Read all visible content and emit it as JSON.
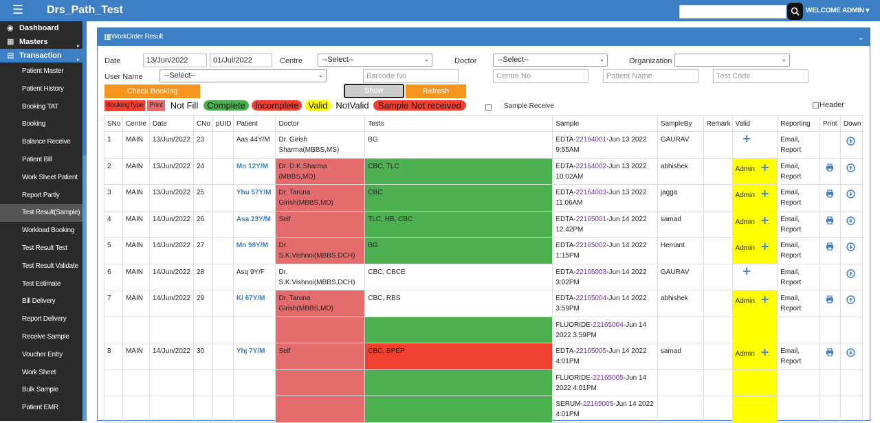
{
  "app": {
    "title": "Drs_Path_Test",
    "welcome": "WELCOME ADMIN ▾"
  },
  "sidebar": {
    "sections": [
      {
        "label": "Dashboard",
        "icon": "dashboard-icon"
      },
      {
        "label": "Masters",
        "icon": "masters-icon"
      },
      {
        "label": "Transaction",
        "icon": "transaction-icon"
      }
    ],
    "items": [
      "Patient Master",
      "Patient History",
      "Booking TAT",
      "Booking",
      "Balance Receive",
      "Patient Bill",
      "Work Sheet Patient",
      "Report Partly",
      "Test Result(Sample)",
      "Workload Booking",
      "Test Result Test",
      "Test Result Validate",
      "Test Estimate",
      "Bill Delivery",
      "Report Delivery",
      "Receive Sample",
      "Voucher Entry",
      "Work Sheet",
      "Bulk Sample",
      "Patient EMR"
    ]
  },
  "panel": {
    "title": "WorkOrder Result"
  },
  "filters": {
    "date_label": "Date",
    "date_from": "13/Jun/2022",
    "date_to": "01/Jul/2022",
    "centre_label": "Centre",
    "centre_value": "--Select--",
    "doctor_label": "Doctor",
    "doctor_value": "--Select--",
    "org_label": "Organization",
    "org_value": "",
    "user_label": "User Name",
    "user_value": "--Select--",
    "barcode_ph": "Barcode No",
    "centre_no_ph": "Centre No",
    "patient_name_ph": "Patient Name",
    "test_code_ph": "Test Code"
  },
  "buttons": {
    "check_booking": "Check Booking",
    "show": "Show",
    "refresh": "Refresh"
  },
  "legend": {
    "booking_type": "BookingType",
    "print": "Print",
    "not_fill": "Not Fill",
    "complete": "Complete",
    "incomplete": "Incomplete",
    "valid": "Valid",
    "not_valid": "NotValid",
    "sample_not_received": "Sample Not received",
    "sample_receive": "Sample Receive",
    "header": "Header"
  },
  "table": {
    "headers": [
      "SNo",
      "Centre",
      "Date",
      "CNo",
      "pUID",
      "Patient",
      "Doctor",
      "Tests",
      "Sample",
      "SampleBy",
      "Remark",
      "Valid",
      "Reporting",
      "Print",
      "Down"
    ],
    "rows": [
      {
        "sno": "1",
        "centre": "MAIN",
        "date": "13/Jun/2022",
        "cno": "23",
        "puid": "",
        "patient": "Aas 44Y/M",
        "doctor": "Dr. Girish Sharma(MBBS,MS)",
        "tests": "BG",
        "sample_prefix": "EDTA-",
        "sample_id": "22164001",
        "sample_suffix": "-Jun 13 2022 9:55AM",
        "sampleby": "GAURAV",
        "valid": "",
        "reporting": "Email, Report",
        "print": false,
        "down": "up"
      },
      {
        "sno": "2",
        "centre": "MAIN",
        "date": "13/Jun/2022",
        "cno": "24",
        "puid": "",
        "patient": "Mn 12Y/M",
        "doctor": "Dr. D.K.Sharma (MBBS,MD)",
        "tests": "CBC, TLC",
        "sample_prefix": "EDTA-",
        "sample_id": "22164002",
        "sample_suffix": "-Jun 13 2022 10:02AM",
        "sampleby": "abhishek",
        "valid": "Admin",
        "reporting": "Email, Report",
        "print": true,
        "down": "up"
      },
      {
        "sno": "3",
        "centre": "MAIN",
        "date": "13/Jun/2022",
        "cno": "25",
        "puid": "",
        "patient": "Yhu 57Y/M",
        "doctor": "Dr. Taruna Girish(MBBS,MD)",
        "tests": "CBC",
        "sample_prefix": "EDTA-",
        "sample_id": "22164003",
        "sample_suffix": "-Jun 13 2022 11:06AM",
        "sampleby": "jagga",
        "valid": "Admin",
        "reporting": "Email, Report",
        "print": true,
        "down": "down"
      },
      {
        "sno": "4",
        "centre": "MAIN",
        "date": "14/Jun/2022",
        "cno": "26",
        "puid": "",
        "patient": "Asa 23Y/M",
        "doctor": "Self",
        "tests": "TLC, HB, CBC",
        "sample_prefix": "EDTA-",
        "sample_id": "22165001",
        "sample_suffix": "-Jun 14 2022 12:42PM",
        "sampleby": "samad",
        "valid": "Admin",
        "reporting": "Email, Report",
        "print": true,
        "down": "down"
      },
      {
        "sno": "5",
        "centre": "MAIN",
        "date": "14/Jun/2022",
        "cno": "27",
        "puid": "",
        "patient": "Mn 98Y/M",
        "doctor": "Dr. S.K.Vishnoi(MBBS,DCH)",
        "tests": "BG",
        "sample_prefix": "EDTA-",
        "sample_id": "22165002",
        "sample_suffix": "-Jun 14 2022 1:15PM",
        "sampleby": "Hemant",
        "valid": "Admin",
        "reporting": "Email, Report",
        "print": true,
        "down": "down"
      },
      {
        "sno": "6",
        "centre": "MAIN",
        "date": "14/Jun/2022",
        "cno": "28",
        "puid": "",
        "patient": "Asq 9Y/F",
        "doctor": "Dr. S.K.Vishnoi(MBBS,DCH)",
        "tests": "CBC, CBCE",
        "sample_prefix": "EDTA-",
        "sample_id": "22165003",
        "sample_suffix": "-Jun 14 2022 3:02PM",
        "sampleby": "GAURAV",
        "valid": "",
        "reporting": "Email, Report",
        "print": false,
        "down": "up"
      },
      {
        "sno": "7",
        "centre": "MAIN",
        "date": "14/Jun/2022",
        "cno": "29",
        "puid": "",
        "patient": "Kl 67Y/M",
        "doctor": "Dr. Taruna Girish(MBBS,MD)",
        "tests": "CBC, RBS",
        "sample_prefix": "EDTA-",
        "sample_id": "22165004",
        "sample_suffix": "-Jun 14 2022 3:59PM",
        "sampleby": "abhishek",
        "valid": "Admin",
        "reporting": "Email, Report",
        "print": true,
        "down": "up"
      },
      {
        "sno": "",
        "centre": "",
        "date": "",
        "cno": "",
        "puid": "",
        "patient": "",
        "doctor": "",
        "tests": "",
        "sample_prefix": "FLUORIDE-",
        "sample_id": "22165004",
        "sample_suffix": "-Jun 14 2022 3:59PM",
        "sampleby": "",
        "valid": "",
        "reporting": "",
        "print": false,
        "down": ""
      },
      {
        "sno": "8",
        "centre": "MAIN",
        "date": "14/Jun/2022",
        "cno": "30",
        "puid": "",
        "patient": "Yhj 7Y/M",
        "doctor": "Self",
        "tests": "CBC, BPEP",
        "sample_prefix": "EDTA-",
        "sample_id": "22165005",
        "sample_suffix": "-Jun 14 2022 4:01PM",
        "sampleby": "samad",
        "valid": "Admin",
        "reporting": "Email, Report",
        "print": true,
        "down": "down"
      },
      {
        "sno": "",
        "centre": "",
        "date": "",
        "cno": "",
        "puid": "",
        "patient": "",
        "doctor": "",
        "tests": "",
        "sample_prefix": "FLUORIDE-",
        "sample_id": "22165005",
        "sample_suffix": "-Jun 14 2022 4:01PM",
        "sampleby": "",
        "valid": "",
        "reporting": "",
        "print": false,
        "down": ""
      },
      {
        "sno": "",
        "centre": "",
        "date": "",
        "cno": "",
        "puid": "",
        "patient": "",
        "doctor": "",
        "tests": "",
        "sample_prefix": "SERUM-",
        "sample_id": "22165005",
        "sample_suffix": "-Jun 14 2022 4:01PM",
        "sampleby": "",
        "valid": "",
        "reporting": "",
        "print": false,
        "down": ""
      }
    ]
  },
  "colors": {
    "primary": "#3d7fc4",
    "orange": "#f7941d",
    "complete": "#4caf50",
    "incomplete": "#e46c6c",
    "sample_not_received": "#f04030",
    "valid": "#ffff00"
  }
}
